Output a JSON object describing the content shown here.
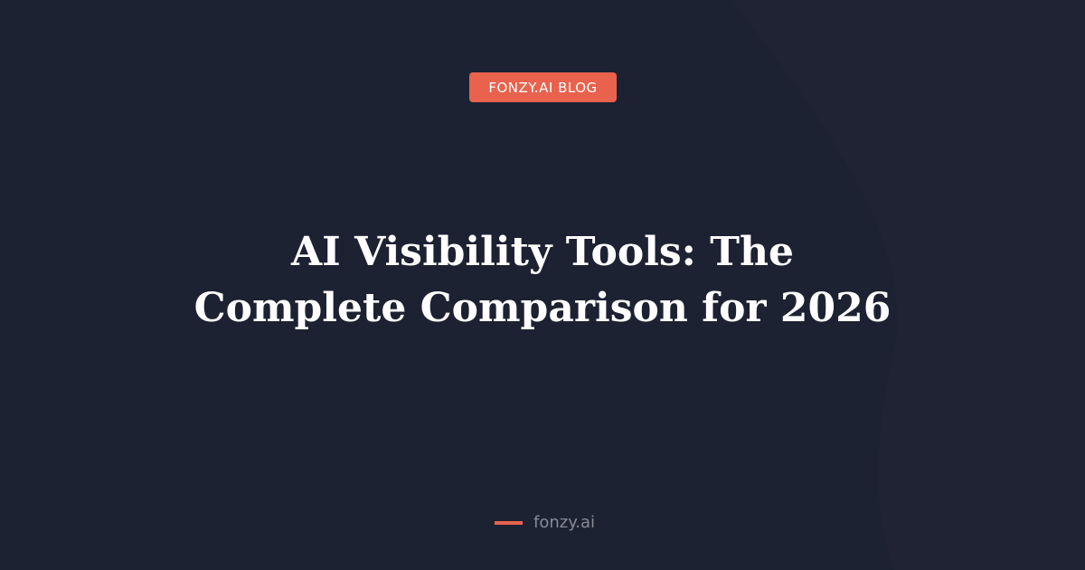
{
  "colors": {
    "background": "#1c2232",
    "accent": "#e8624d"
  },
  "badge": {
    "label": "FONZY.AI BLOG"
  },
  "title": "AI Visibility Tools: The Complete Comparison for 2026",
  "footer": {
    "site": "fonzy.ai"
  }
}
